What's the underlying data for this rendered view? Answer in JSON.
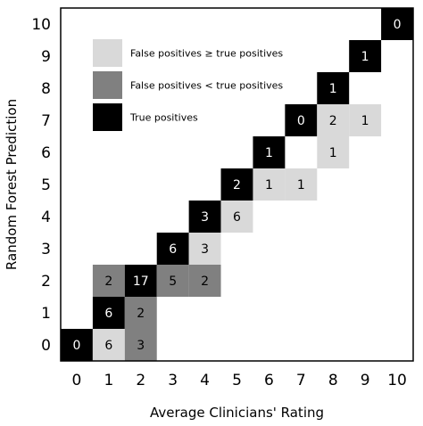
{
  "chart_data": {
    "type": "heatmap",
    "xlabel": "Average Clinicians' Rating",
    "ylabel": "Random Forest  Prediction",
    "x_ticks": [
      "0",
      "1",
      "2",
      "3",
      "4",
      "5",
      "6",
      "7",
      "8",
      "9",
      "10"
    ],
    "y_ticks": [
      "0",
      "1",
      "2",
      "3",
      "4",
      "5",
      "6",
      "7",
      "8",
      "9",
      "10"
    ],
    "xlim": [
      0,
      10
    ],
    "ylim": [
      0,
      10
    ],
    "grid": false,
    "legend_position": "top-left",
    "categories": {
      "fp_ge_tp": {
        "label": "False positives ≥ true positives",
        "color": "#d9d9d9",
        "text_color": "#000000"
      },
      "fp_lt_tp": {
        "label": "False positives < true positives",
        "color": "#808080",
        "text_color": "#000000"
      },
      "tp": {
        "label": "True positives",
        "color": "#000000",
        "text_color": "#ffffff"
      }
    },
    "legend_order": [
      "fp_ge_tp",
      "fp_lt_tp",
      "tp"
    ],
    "cells": [
      {
        "x": 0,
        "y": 0,
        "value": 0,
        "category": "tp"
      },
      {
        "x": 1,
        "y": 0,
        "value": 6,
        "category": "fp_ge_tp"
      },
      {
        "x": 2,
        "y": 0,
        "value": 3,
        "category": "fp_lt_tp"
      },
      {
        "x": 1,
        "y": 1,
        "value": 6,
        "category": "tp"
      },
      {
        "x": 2,
        "y": 1,
        "value": 2,
        "category": "fp_lt_tp"
      },
      {
        "x": 1,
        "y": 2,
        "value": 2,
        "category": "fp_lt_tp"
      },
      {
        "x": 2,
        "y": 2,
        "value": 17,
        "category": "tp"
      },
      {
        "x": 3,
        "y": 2,
        "value": 5,
        "category": "fp_lt_tp"
      },
      {
        "x": 4,
        "y": 2,
        "value": 2,
        "category": "fp_lt_tp"
      },
      {
        "x": 3,
        "y": 3,
        "value": 6,
        "category": "tp"
      },
      {
        "x": 4,
        "y": 3,
        "value": 3,
        "category": "fp_ge_tp"
      },
      {
        "x": 4,
        "y": 4,
        "value": 3,
        "category": "tp"
      },
      {
        "x": 5,
        "y": 4,
        "value": 6,
        "category": "fp_ge_tp"
      },
      {
        "x": 5,
        "y": 5,
        "value": 2,
        "category": "tp"
      },
      {
        "x": 6,
        "y": 5,
        "value": 1,
        "category": "fp_ge_tp"
      },
      {
        "x": 7,
        "y": 5,
        "value": 1,
        "category": "fp_ge_tp"
      },
      {
        "x": 6,
        "y": 6,
        "value": 1,
        "category": "tp"
      },
      {
        "x": 8,
        "y": 6,
        "value": 1,
        "category": "fp_ge_tp"
      },
      {
        "x": 7,
        "y": 7,
        "value": 0,
        "category": "tp"
      },
      {
        "x": 8,
        "y": 7,
        "value": 2,
        "category": "fp_ge_tp"
      },
      {
        "x": 9,
        "y": 7,
        "value": 1,
        "category": "fp_ge_tp"
      },
      {
        "x": 8,
        "y": 8,
        "value": 1,
        "category": "tp"
      },
      {
        "x": 9,
        "y": 9,
        "value": 1,
        "category": "tp"
      },
      {
        "x": 10,
        "y": 10,
        "value": 0,
        "category": "tp"
      }
    ]
  }
}
